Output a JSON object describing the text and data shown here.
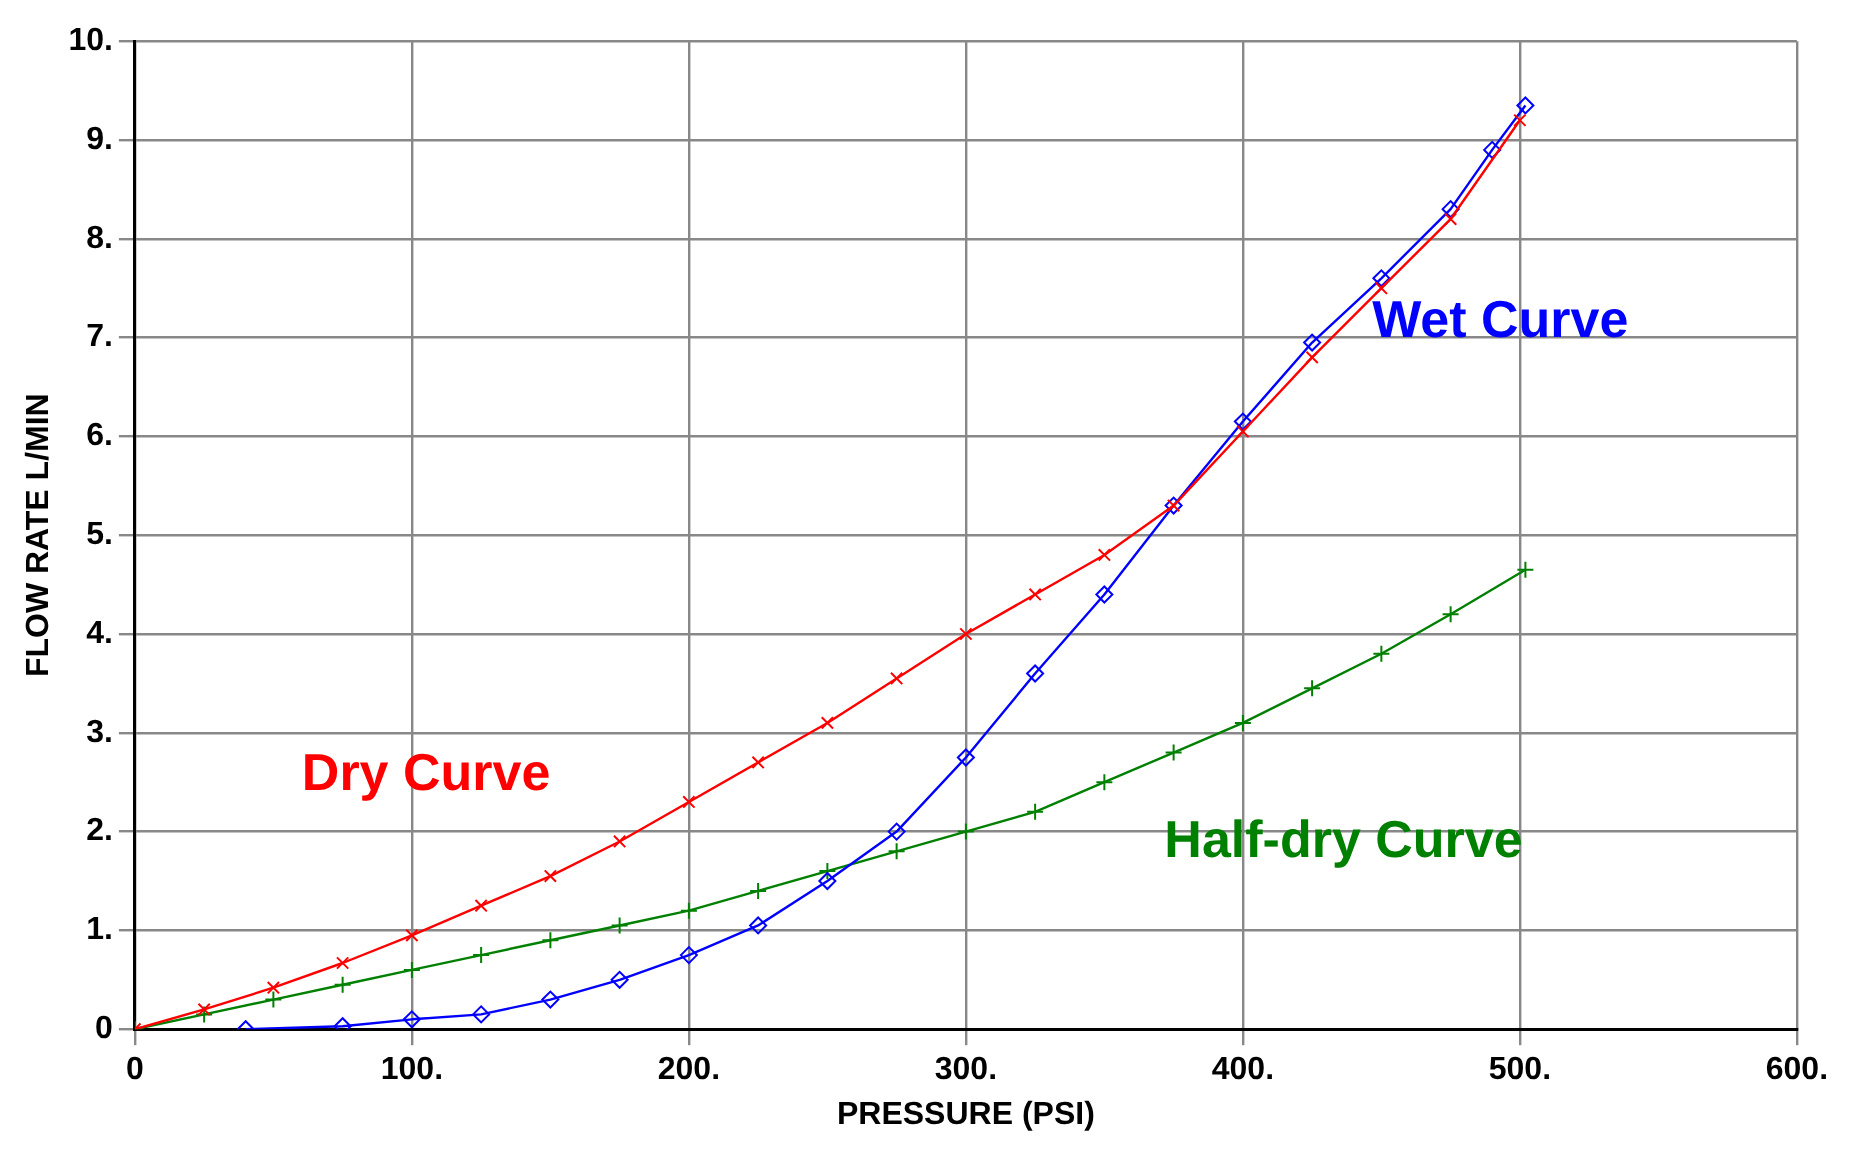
{
  "chart_data": {
    "type": "line",
    "xlabel": "PRESSURE (PSI)",
    "ylabel": "FLOW RATE L/MIN",
    "xlim": [
      0,
      600
    ],
    "xticks": [
      0,
      {
        "value": 100,
        "label": "100."
      },
      {
        "value": 200,
        "label": "200."
      },
      {
        "value": 300,
        "label": "300."
      },
      {
        "value": 400,
        "label": "400."
      },
      {
        "value": 500,
        "label": "500."
      },
      {
        "value": 600,
        "label": "600."
      }
    ],
    "ylim": [
      0,
      10
    ],
    "yticks": [
      0,
      {
        "value": 1,
        "label": "1."
      },
      {
        "value": 2,
        "label": "2."
      },
      {
        "value": 3,
        "label": "3."
      },
      {
        "value": 4,
        "label": "4."
      },
      {
        "value": 5,
        "label": "5."
      },
      {
        "value": 6,
        "label": "6."
      },
      {
        "value": 7,
        "label": "7."
      },
      {
        "value": 8,
        "label": "8."
      },
      {
        "value": 9,
        "label": "9."
      },
      {
        "value": 10,
        "label": "10."
      }
    ],
    "grid": true,
    "legend": false,
    "line_style": "solid",
    "series": [
      {
        "name": "Dry Curve",
        "color": "#ff0000",
        "marker": "cross",
        "x": [
          0,
          25,
          50,
          75,
          100,
          125,
          150,
          175,
          200,
          225,
          250,
          275,
          300,
          325,
          350,
          375,
          400,
          425,
          450,
          475,
          500
        ],
        "values": [
          0,
          0.2,
          0.42,
          0.67,
          0.95,
          1.25,
          1.55,
          1.9,
          2.3,
          2.7,
          3.1,
          3.55,
          4.0,
          4.4,
          4.8,
          5.3,
          6.05,
          6.8,
          7.5,
          8.2,
          9.2
        ]
      },
      {
        "name": "Wet Curve",
        "color": "#0000ff",
        "marker": "diamond",
        "x": [
          40,
          75,
          100,
          125,
          150,
          175,
          200,
          225,
          250,
          275,
          300,
          325,
          350,
          375,
          400,
          425,
          450,
          475,
          490,
          502
        ],
        "values": [
          0,
          0.03,
          0.1,
          0.15,
          0.3,
          0.5,
          0.75,
          1.05,
          1.5,
          2.0,
          2.75,
          3.6,
          4.4,
          5.3,
          6.15,
          6.95,
          7.6,
          8.3,
          8.9,
          9.35
        ]
      },
      {
        "name": "Half-dry Curve",
        "color": "#008000",
        "marker": "plus",
        "x": [
          0,
          25,
          50,
          75,
          100,
          125,
          150,
          175,
          200,
          225,
          250,
          275,
          300,
          325,
          350,
          375,
          400,
          425,
          450,
          475,
          502
        ],
        "values": [
          0,
          0.15,
          0.3,
          0.45,
          0.6,
          0.75,
          0.9,
          1.05,
          1.2,
          1.4,
          1.6,
          1.8,
          2.0,
          2.2,
          2.5,
          2.8,
          3.1,
          3.45,
          3.8,
          4.2,
          4.65
        ]
      }
    ]
  }
}
